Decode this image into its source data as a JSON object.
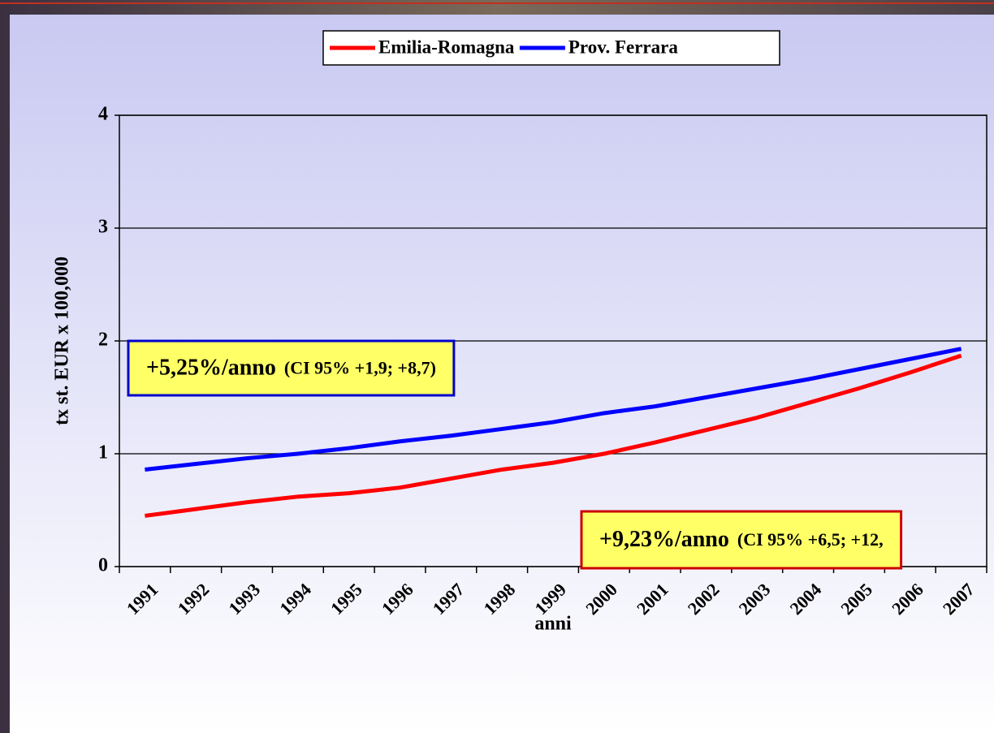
{
  "chart_data": {
    "type": "line",
    "y_label": "tx st. EUR x 100,000",
    "x_label": "anni",
    "categories": [
      "1991",
      "1992",
      "1993",
      "1994",
      "1995",
      "1996",
      "1997",
      "1998",
      "1999",
      "2000",
      "2001",
      "2002",
      "2003",
      "2004",
      "2005",
      "2006",
      "2007"
    ],
    "series": [
      {
        "name": "Emilia-Romagna",
        "color": "#ff0000",
        "values": [
          0.45,
          0.51,
          0.57,
          0.62,
          0.65,
          0.7,
          0.78,
          0.86,
          0.92,
          1.0,
          1.1,
          1.21,
          1.32,
          1.45,
          1.58,
          1.72,
          1.87
        ]
      },
      {
        "name": "Prov. Ferrara",
        "color": "#0000ff",
        "values": [
          0.86,
          0.91,
          0.96,
          1.0,
          1.05,
          1.11,
          1.16,
          1.22,
          1.28,
          1.36,
          1.42,
          1.5,
          1.58,
          1.66,
          1.75,
          1.84,
          1.93
        ]
      }
    ],
    "ylim": [
      0,
      4
    ],
    "yticks": [
      0,
      1,
      2,
      3,
      4
    ],
    "grid": true,
    "legend": "top",
    "annotations": [
      {
        "label": "+5,25%/anno",
        "detail": "(CI 95% +1,9; +8,7)",
        "border_color": "#0000cc"
      },
      {
        "label": "+9,23%/anno",
        "detail": "(CI 95% +6,5; +12,",
        "border_color": "#cc0000"
      }
    ]
  }
}
